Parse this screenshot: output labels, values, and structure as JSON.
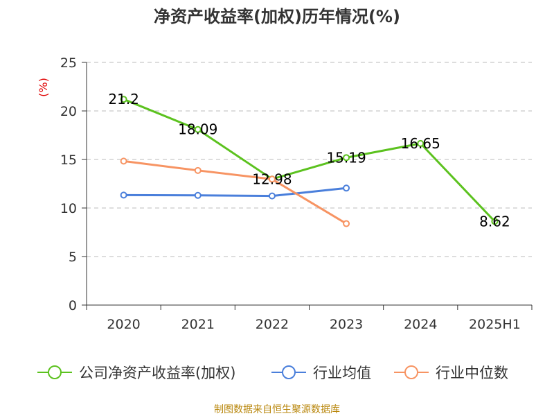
{
  "colors": {
    "green": "#5cc21f",
    "blue": "#4a7fdb",
    "orange": "#f79463",
    "unit": "#e00000",
    "source": "#b8860b",
    "axis": "#333333",
    "grid": "#bbbbbb"
  },
  "chart_data": {
    "type": "line",
    "title": "净资产收益率(加权)历年情况(%)",
    "unit_label": "(%)",
    "categories": [
      "2020",
      "2021",
      "2022",
      "2023",
      "2024",
      "2025H1"
    ],
    "ylim": [
      0,
      25
    ],
    "yticks": [
      0,
      5,
      10,
      15,
      20,
      25
    ],
    "grid": true,
    "legend_position": "bottom",
    "series": [
      {
        "name": "公司净资产收益率(加权)",
        "color": "#5cc21f",
        "values": [
          21.2,
          18.09,
          12.98,
          15.19,
          16.65,
          8.62
        ],
        "labels": [
          "21.2",
          "18.09",
          "12.98",
          "15.19",
          "16.65",
          "8.62"
        ]
      },
      {
        "name": "行业均值",
        "color": "#4a7fdb",
        "values": [
          11.33,
          11.3,
          11.24,
          12.05,
          null,
          null
        ]
      },
      {
        "name": "行业中位数",
        "color": "#f79463",
        "values": [
          14.83,
          13.87,
          12.97,
          8.39,
          null,
          null
        ]
      }
    ]
  },
  "source_text": "制图数据来自恒生聚源数据库"
}
